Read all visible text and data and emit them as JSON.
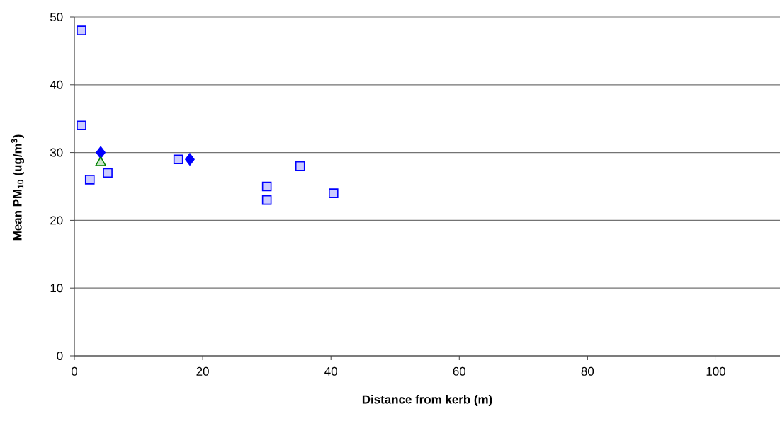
{
  "chart_data": {
    "type": "scatter",
    "xlabel": "Distance from kerb (m)",
    "ylabel": "Mean PM$_{10}$ (ug/m$^{3}$)",
    "xlim": [
      0,
      110
    ],
    "xticks": [
      0,
      20,
      40,
      60,
      80,
      100
    ],
    "ylim": [
      0,
      50
    ],
    "yticks": [
      0,
      10,
      20,
      30,
      40,
      50
    ],
    "grid": "y",
    "legend": false,
    "series": [
      {
        "color": "#0000ff",
        "marker": "square",
        "x": [
          1.1,
          1.1,
          2.4,
          5.2,
          16.2,
          30,
          30,
          35.2,
          40.4
        ],
        "values": [
          48,
          34,
          26,
          27,
          29,
          25,
          23,
          28,
          24
        ]
      },
      {
        "color": "#0000ff",
        "marker": "diamond",
        "x": [
          4.1,
          18
        ],
        "values": [
          30,
          29
        ]
      },
      {
        "color": "#008000",
        "marker": "triangle",
        "x": [
          4.1
        ],
        "values": [
          28.5
        ]
      }
    ]
  }
}
